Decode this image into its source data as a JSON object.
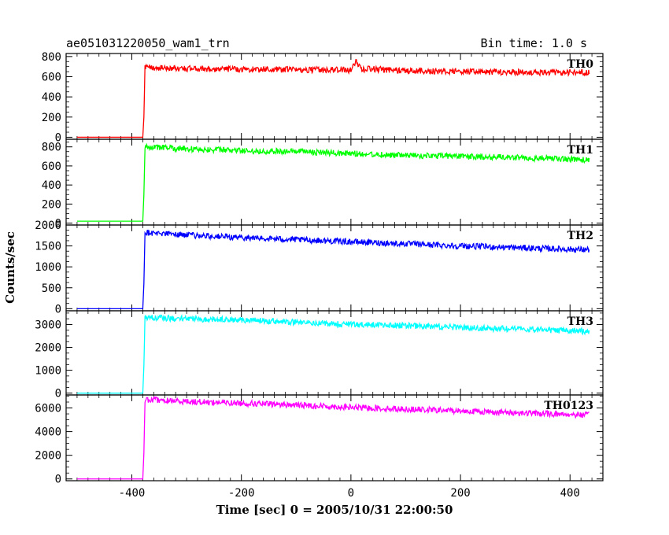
{
  "header": {
    "title": "ae051031220050_wam1_trn",
    "bin_time": "Bin time: 1.0 s"
  },
  "chart_data": {
    "type": "line",
    "title": "ae051031220050_wam1_trn",
    "xlabel": "Time [sec] 0 = 2005/10/31 22:00:50",
    "ylabel": "Counts/sec",
    "xlim": [
      -520,
      460
    ],
    "xticks": [
      -400,
      -200,
      0,
      200,
      400
    ],
    "grid": false,
    "panels": [
      {
        "name": "TH0",
        "color": "#ff0000",
        "ylim": [
          -20,
          830
        ],
        "yticks": [
          0,
          200,
          400,
          600,
          800
        ],
        "x": [
          -500,
          -380,
          -378,
          -376,
          -370,
          -300,
          -200,
          -100,
          0,
          10,
          20,
          100,
          200,
          300,
          400,
          435
        ],
        "y": [
          0,
          0,
          200,
          690,
          690,
          680,
          675,
          670,
          665,
          750,
          680,
          660,
          650,
          645,
          640,
          640
        ]
      },
      {
        "name": "TH1",
        "color": "#00ff00",
        "ylim": [
          -20,
          880
        ],
        "yticks": [
          0,
          200,
          400,
          600,
          800
        ],
        "x": [
          -500,
          -380,
          -378,
          -376,
          -370,
          -300,
          -200,
          -100,
          0,
          100,
          200,
          300,
          400,
          435
        ],
        "y": [
          20,
          20,
          300,
          800,
          800,
          780,
          760,
          750,
          730,
          710,
          700,
          690,
          670,
          665
        ],
        "notes": ""
      },
      {
        "name": "TH2",
        "color": "#0000ff",
        "ylim": [
          -50,
          2000
        ],
        "yticks": [
          0,
          500,
          1000,
          1500,
          2000
        ],
        "x": [
          -500,
          -380,
          -378,
          -376,
          -370,
          -300,
          -200,
          -100,
          0,
          100,
          200,
          300,
          400,
          435
        ],
        "y": [
          0,
          0,
          600,
          1820,
          1820,
          1760,
          1700,
          1650,
          1600,
          1550,
          1500,
          1460,
          1420,
          1410
        ]
      },
      {
        "name": "TH3",
        "color": "#00ffff",
        "ylim": [
          -80,
          3600
        ],
        "yticks": [
          0,
          1000,
          2000,
          3000
        ],
        "x": [
          -500,
          -380,
          -378,
          -376,
          -370,
          -300,
          -200,
          -100,
          0,
          100,
          200,
          300,
          400,
          435
        ],
        "y": [
          0,
          0,
          1200,
          3300,
          3300,
          3250,
          3200,
          3100,
          3000,
          2950,
          2870,
          2800,
          2730,
          2700
        ]
      },
      {
        "name": "TH0123",
        "color": "#ff00ff",
        "ylim": [
          -150,
          7100
        ],
        "yticks": [
          0,
          2000,
          4000,
          6000
        ],
        "x": [
          -500,
          -380,
          -378,
          -376,
          -370,
          -300,
          -200,
          -100,
          0,
          100,
          200,
          300,
          400,
          435
        ],
        "y": [
          0,
          0,
          2200,
          6700,
          6700,
          6550,
          6400,
          6250,
          6050,
          5900,
          5750,
          5600,
          5450,
          5400
        ]
      }
    ]
  }
}
